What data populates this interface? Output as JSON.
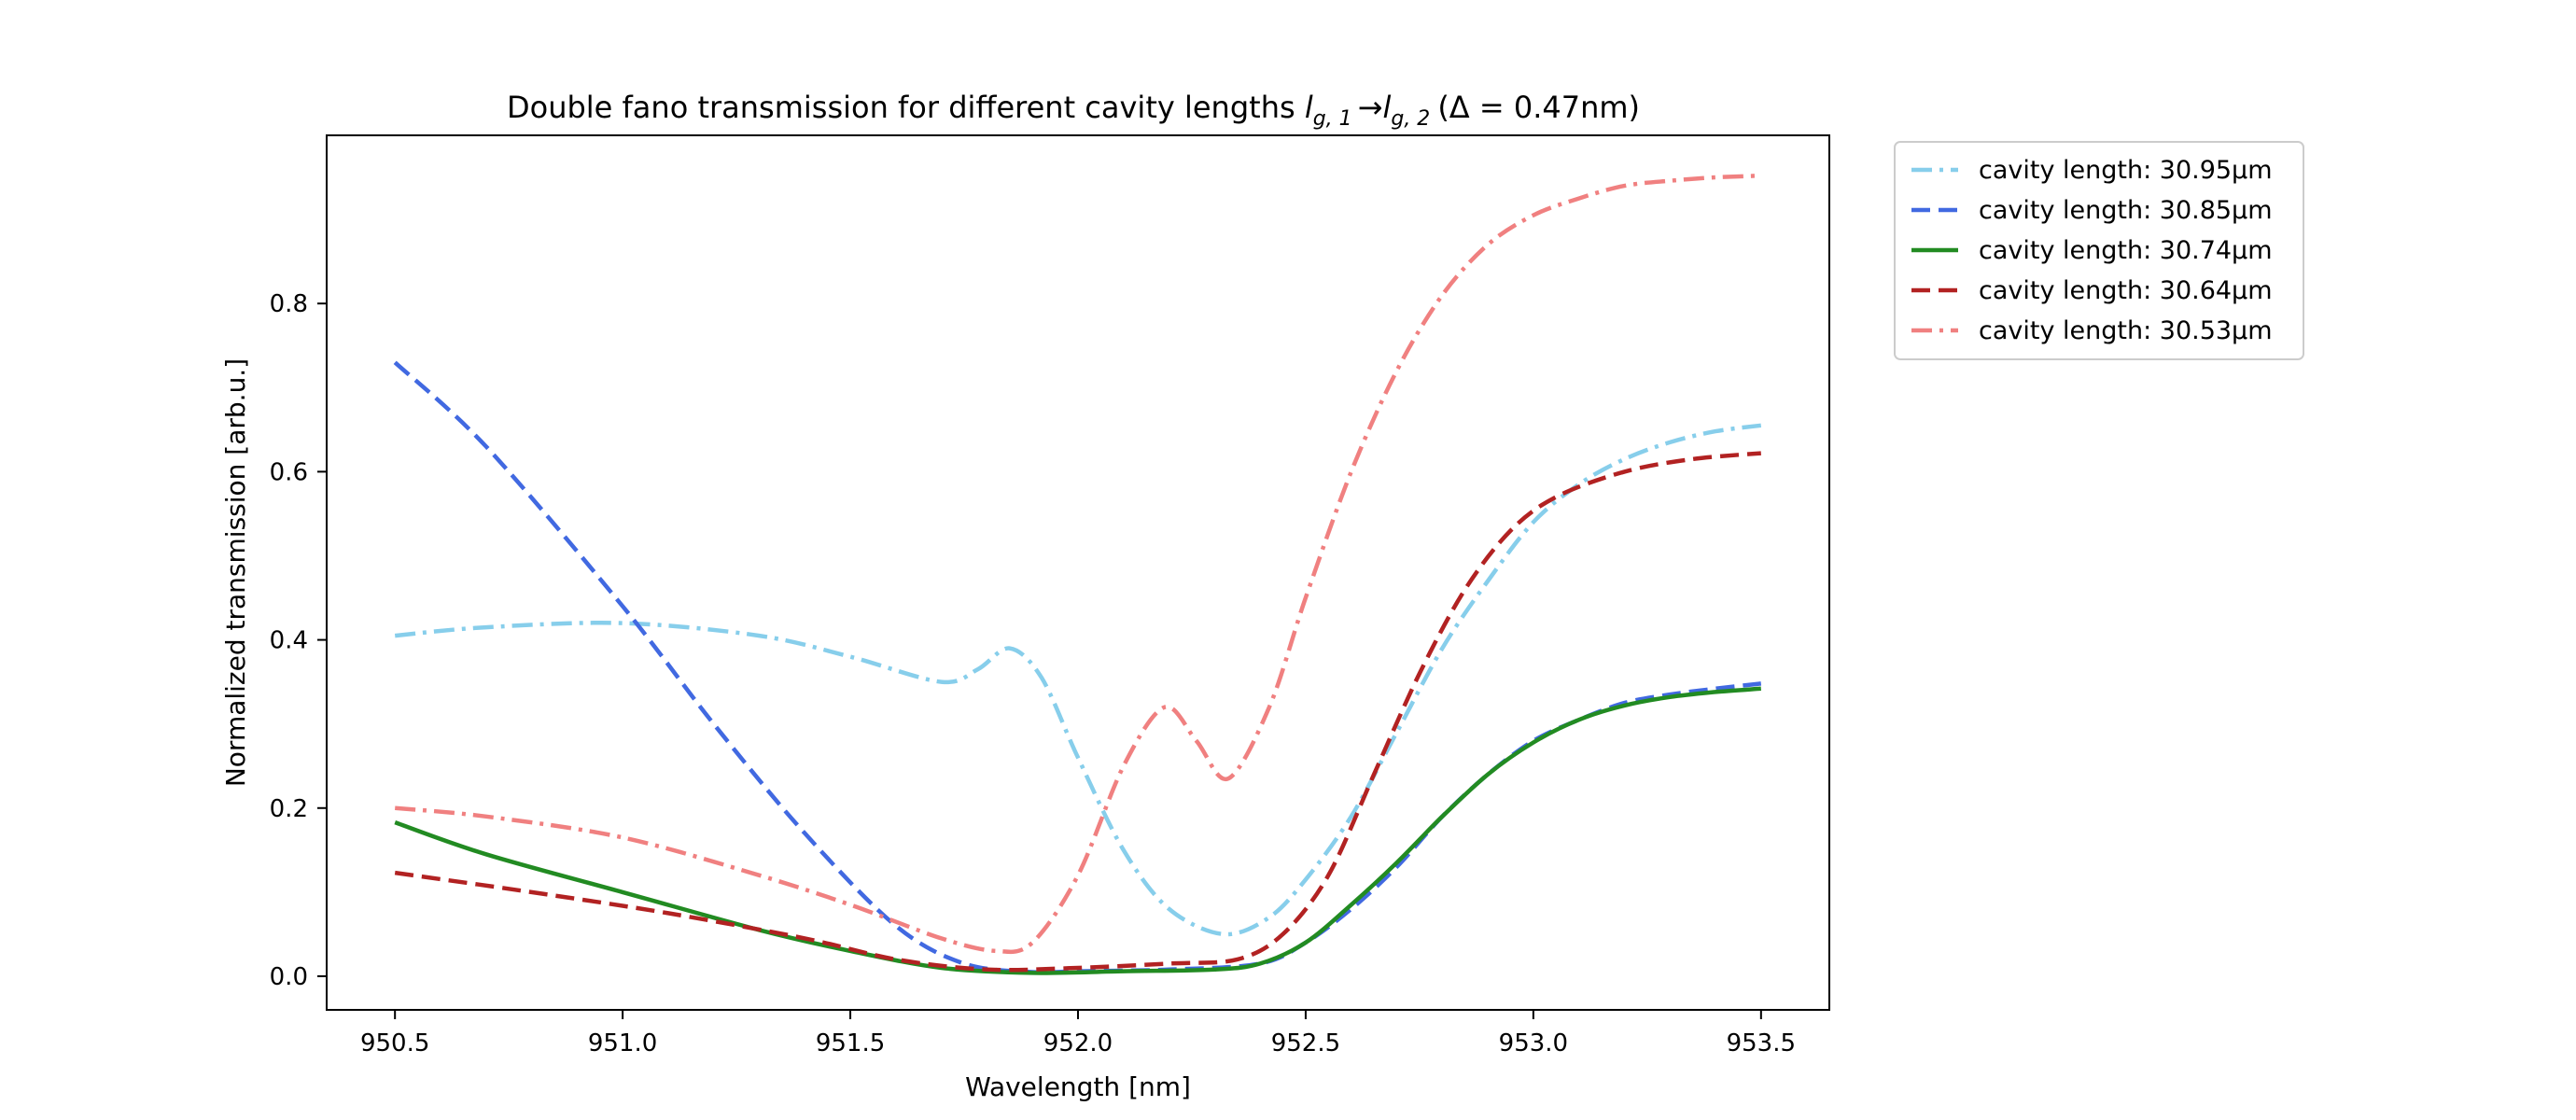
{
  "chart_data": {
    "type": "line",
    "title": {
      "prefix": "Double fano transmission for different cavity lengths ",
      "var1": "l",
      "sub1": "g, 1",
      "arrow": "→",
      "var2": "l",
      "sub2": "g, 2",
      "suffix": "(Δ = 0.47nm)"
    },
    "xlabel": "Wavelength [nm]",
    "ylabel": "Normalized transmission [arb.u.]",
    "xlim": [
      950.35,
      953.65
    ],
    "ylim": [
      -0.04,
      1.0
    ],
    "xticks": [
      950.5,
      951.0,
      951.5,
      952.0,
      952.5,
      953.0,
      953.5
    ],
    "xtick_labels": [
      "950.5",
      "951.0",
      "951.5",
      "952.0",
      "952.5",
      "953.0",
      "953.5"
    ],
    "yticks": [
      0.0,
      0.2,
      0.4,
      0.6,
      0.8
    ],
    "ytick_labels": [
      "0.0",
      "0.2",
      "0.4",
      "0.6",
      "0.8"
    ],
    "grid": false,
    "legend_position": "outside-top-right",
    "series": [
      {
        "name": "cavity length: 30.95µm",
        "color": "#87ceeb",
        "style": "dashdot",
        "x": [
          950.5,
          950.7,
          951.0,
          951.3,
          951.5,
          951.7,
          951.78,
          951.85,
          951.92,
          952.0,
          952.1,
          952.2,
          952.32,
          952.42,
          952.5,
          952.6,
          952.7,
          952.8,
          952.9,
          953.0,
          953.1,
          953.2,
          953.3,
          953.4,
          953.5
        ],
        "y": [
          0.405,
          0.415,
          0.42,
          0.405,
          0.38,
          0.35,
          0.365,
          0.39,
          0.355,
          0.26,
          0.15,
          0.08,
          0.05,
          0.07,
          0.115,
          0.19,
          0.29,
          0.39,
          0.47,
          0.54,
          0.585,
          0.615,
          0.635,
          0.648,
          0.655
        ]
      },
      {
        "name": "cavity length: 30.85µm",
        "color": "#4169e1",
        "style": "dashed",
        "x": [
          950.5,
          950.7,
          951.0,
          951.2,
          951.4,
          951.6,
          951.75,
          951.9,
          952.0,
          952.2,
          952.4,
          952.5,
          952.6,
          952.7,
          952.8,
          952.9,
          953.0,
          953.1,
          953.2,
          953.3,
          953.4,
          953.5
        ],
        "y": [
          0.73,
          0.63,
          0.44,
          0.3,
          0.17,
          0.06,
          0.015,
          0.005,
          0.006,
          0.008,
          0.015,
          0.04,
          0.08,
          0.13,
          0.19,
          0.24,
          0.28,
          0.305,
          0.325,
          0.335,
          0.342,
          0.348
        ]
      },
      {
        "name": "cavity length: 30.74µm",
        "color": "#228b22",
        "style": "solid",
        "x": [
          950.5,
          950.7,
          951.0,
          951.3,
          951.5,
          951.7,
          951.9,
          952.1,
          952.3,
          952.4,
          952.5,
          952.6,
          952.7,
          952.8,
          952.9,
          953.0,
          953.1,
          953.2,
          953.3,
          953.4,
          953.5
        ],
        "y": [
          0.183,
          0.145,
          0.1,
          0.055,
          0.03,
          0.01,
          0.004,
          0.006,
          0.008,
          0.015,
          0.04,
          0.085,
          0.135,
          0.19,
          0.24,
          0.278,
          0.305,
          0.322,
          0.332,
          0.338,
          0.342
        ]
      },
      {
        "name": "cavity length: 30.64µm",
        "color": "#b22222",
        "style": "dashed",
        "x": [
          950.5,
          950.8,
          951.1,
          951.4,
          951.6,
          951.8,
          952.0,
          952.2,
          952.35,
          952.45,
          952.55,
          952.65,
          952.75,
          952.85,
          952.95,
          953.05,
          953.2,
          953.35,
          953.5
        ],
        "y": [
          0.123,
          0.1,
          0.075,
          0.045,
          0.02,
          0.008,
          0.01,
          0.015,
          0.02,
          0.05,
          0.12,
          0.24,
          0.36,
          0.46,
          0.53,
          0.57,
          0.6,
          0.615,
          0.622
        ]
      },
      {
        "name": "cavity length: 30.53µm",
        "color": "#f08080",
        "style": "dashdot",
        "x": [
          950.5,
          950.7,
          951.0,
          951.3,
          951.5,
          951.7,
          951.82,
          951.9,
          952.0,
          952.1,
          952.19,
          952.26,
          952.33,
          952.42,
          952.5,
          952.6,
          952.7,
          952.8,
          952.9,
          953.0,
          953.1,
          953.2,
          953.3,
          953.4,
          953.5
        ],
        "y": [
          0.2,
          0.19,
          0.165,
          0.12,
          0.085,
          0.045,
          0.03,
          0.04,
          0.12,
          0.25,
          0.32,
          0.28,
          0.235,
          0.32,
          0.45,
          0.6,
          0.72,
          0.81,
          0.87,
          0.905,
          0.925,
          0.94,
          0.946,
          0.95,
          0.952
        ]
      }
    ]
  }
}
